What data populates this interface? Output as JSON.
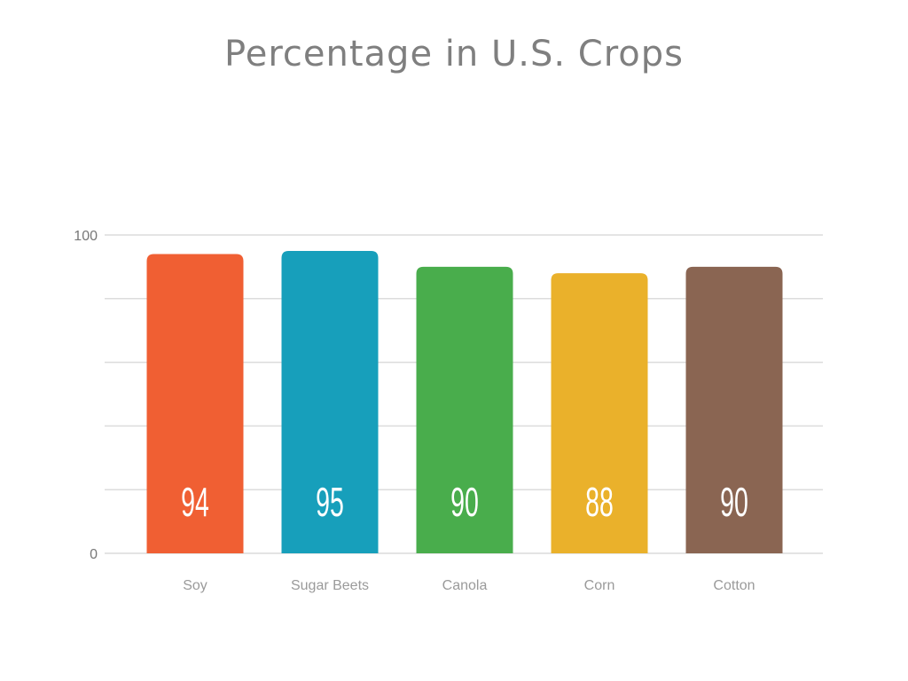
{
  "chart_data": {
    "type": "bar",
    "title": "Percentage in U.S. Crops",
    "categories": [
      "Soy",
      "Sugar Beets",
      "Canola",
      "Corn",
      "Cotton"
    ],
    "values": [
      94,
      95,
      90,
      88,
      90
    ],
    "colors": [
      "#f05f33",
      "#179fbb",
      "#49ad4c",
      "#eab12b",
      "#8a6552"
    ],
    "ylim": [
      0,
      100
    ],
    "y_ticks": [
      "0",
      "100"
    ],
    "gridlines": true,
    "xlabel": "",
    "ylabel": ""
  }
}
